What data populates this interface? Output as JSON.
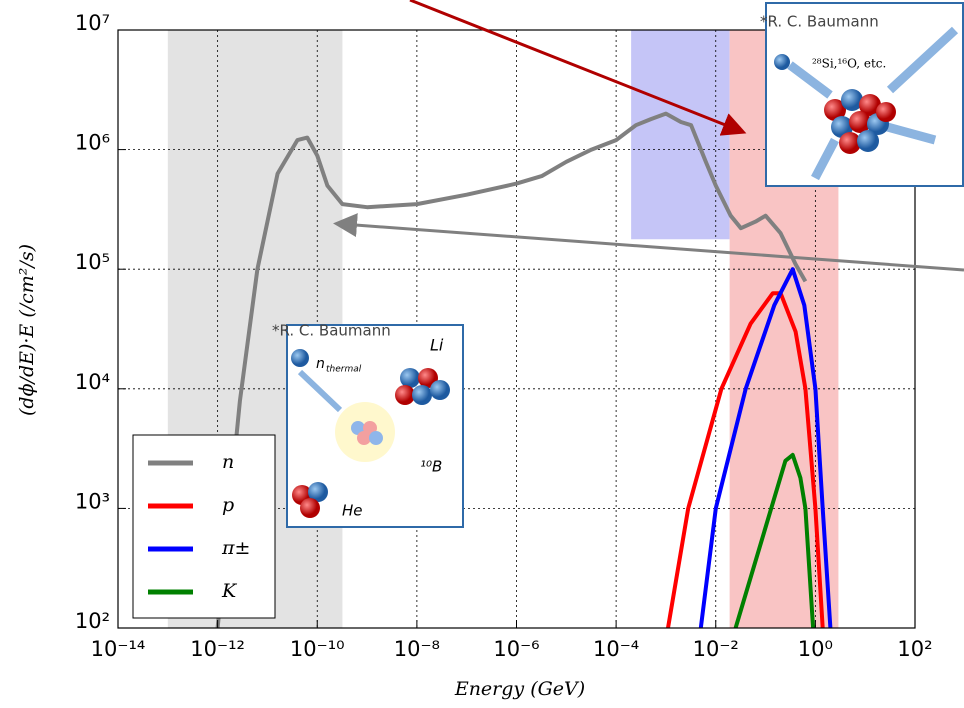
{
  "chart_data": {
    "type": "line",
    "xscale": "log",
    "yscale": "log",
    "grid": true,
    "legend_position": "lower left",
    "xlabel": "Energy (GeV)",
    "ylabel": "(dϕ/dE)·E (/cm²/s)",
    "xlim": [
      1e-14,
      100.0
    ],
    "ylim": [
      100.0,
      10000000.0
    ],
    "xticks": [
      {
        "value": 1e-14,
        "label": "10⁻¹⁴"
      },
      {
        "value": 1e-12,
        "label": "10⁻¹²"
      },
      {
        "value": 1e-10,
        "label": "10⁻¹⁰"
      },
      {
        "value": 1e-08,
        "label": "10⁻⁸"
      },
      {
        "value": 1e-06,
        "label": "10⁻⁶"
      },
      {
        "value": 0.0001,
        "label": "10⁻⁴"
      },
      {
        "value": 0.01,
        "label": "10⁻²"
      },
      {
        "value": 1,
        "label": "10⁰"
      },
      {
        "value": 100,
        "label": "10²"
      }
    ],
    "yticks": [
      {
        "value": 100,
        "label": "10²"
      },
      {
        "value": 1000,
        "label": "10³"
      },
      {
        "value": 10000,
        "label": "10⁴"
      },
      {
        "value": 100000,
        "label": "10⁵"
      },
      {
        "value": 1000000,
        "label": "10⁶"
      },
      {
        "value": 10000000,
        "label": "10⁷"
      }
    ],
    "spans": [
      {
        "xlim": [
          1e-13,
          3.2e-10
        ],
        "color": "#e3e3e3"
      },
      {
        "xlim": [
          0.0002,
          0.019
        ],
        "ylim": [
          178000.0,
          10000000.0
        ],
        "color": "#c5c5f7"
      },
      {
        "xlim": [
          0.019,
          2.9
        ],
        "color": "#f9c4c4"
      }
    ],
    "series": [
      {
        "name": "n",
        "color": "#808080",
        "x": [
          1e-12,
          2.8e-12,
          6.3e-12,
          1.6e-11,
          4e-11,
          6.3e-11,
          1e-10,
          1.6e-10,
          3.2e-10,
          1e-09,
          1e-08,
          1e-07,
          1e-06,
          3.2e-06,
          1e-05,
          3.2e-05,
          0.0001,
          0.00025,
          0.0005,
          0.001,
          0.002,
          0.0032,
          0.0063,
          0.01,
          0.02,
          0.032,
          0.063,
          0.1,
          0.2,
          0.4,
          0.63
        ],
        "values": [
          100,
          7900,
          100000,
          630000,
          1200000,
          1260000,
          890000,
          500000,
          350000,
          330000,
          350000,
          420000,
          520000,
          600000,
          790000,
          1000000,
          1200000,
          1600000,
          1800000,
          2000000,
          1700000,
          1600000,
          790000,
          500000,
          280000,
          220000,
          250000,
          280000,
          200000,
          110000,
          79000
        ]
      },
      {
        "name": "p",
        "color": "#ff0000",
        "x": [
          0.0011,
          0.0028,
          0.013,
          0.05,
          0.14,
          0.2,
          0.4,
          0.63,
          1,
          1.4
        ],
        "values": [
          100,
          1000,
          10000,
          35000,
          63000,
          63000,
          30000,
          10000,
          1000,
          100
        ]
      },
      {
        "name": "π±",
        "color": "#0000ff",
        "x": [
          0.005,
          0.01,
          0.04,
          0.15,
          0.35,
          0.6,
          1,
          1.4,
          2
        ],
        "values": [
          100,
          1000,
          10000,
          50000,
          100000,
          50000,
          10000,
          1000,
          100
        ]
      },
      {
        "name": "K",
        "color": "#008000",
        "x": [
          0.025,
          0.13,
          0.25,
          0.35,
          0.5,
          0.63,
          0.9
        ],
        "values": [
          100,
          1000,
          2500,
          2800,
          1800,
          1000,
          100
        ]
      }
    ]
  },
  "insets": [
    {
      "credit": "*R. C. Baumann",
      "label": "²⁸Si,¹⁶O, etc."
    },
    {
      "credit": "*R. C. Baumann",
      "n": "n",
      "n_sub": "thermal",
      "li": "Li",
      "b": "¹⁰B",
      "he": "He"
    }
  ]
}
